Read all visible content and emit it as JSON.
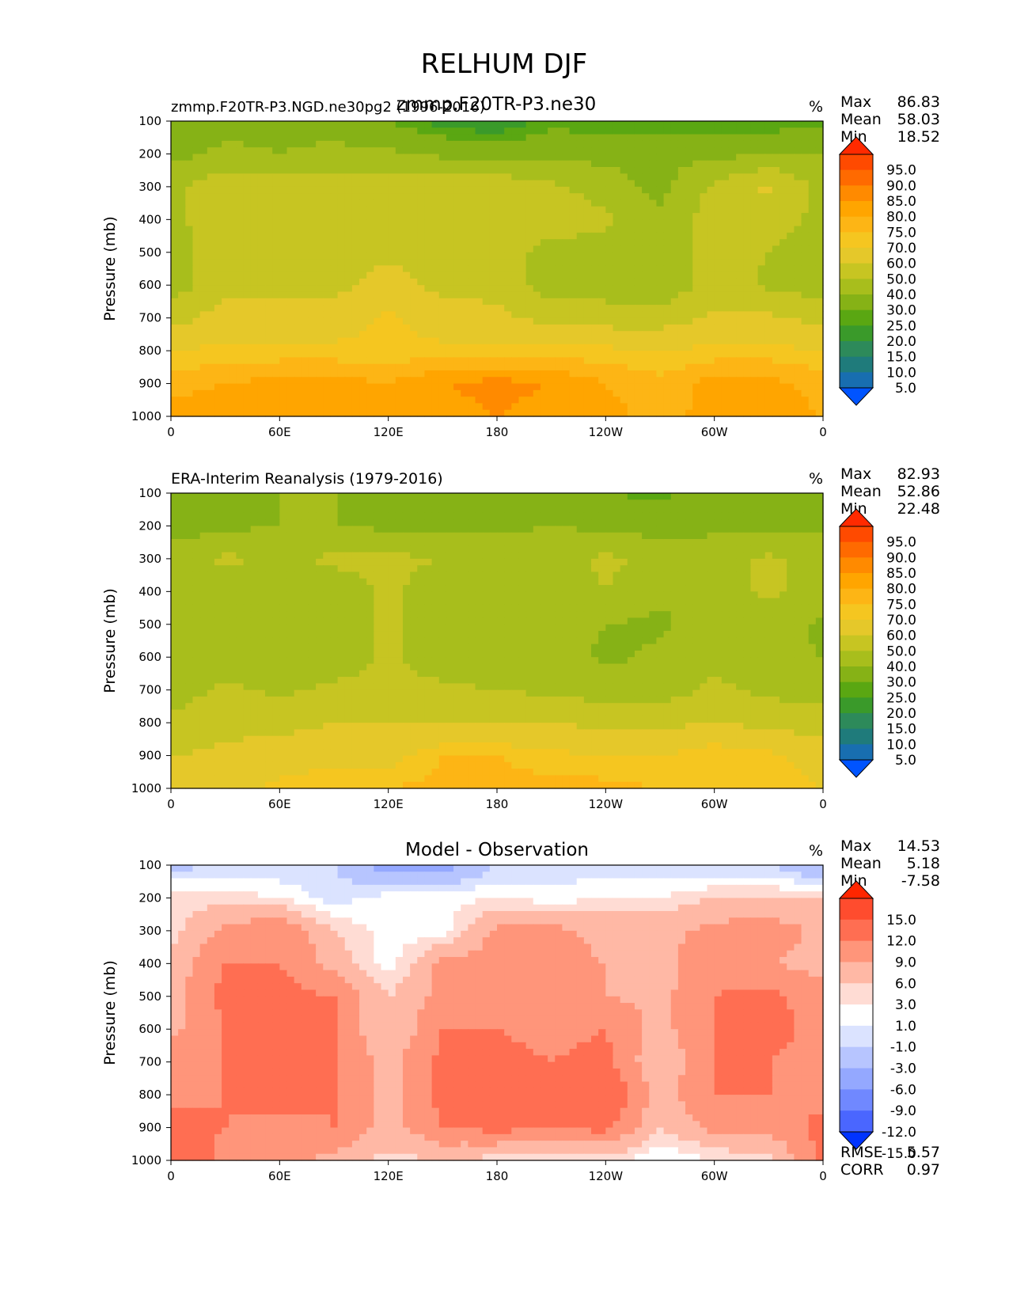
{
  "figure_title": "RELHUM DJF",
  "panels": [
    {
      "left_title": "zmmp.F20TR-P3.NGD.ne30pg2 (1996-2016)",
      "center_title": "zmmp.F20TR-P3.ne30",
      "units": "%",
      "stats": [
        {
          "label": "Max",
          "value": "86.83"
        },
        {
          "label": "Mean",
          "value": "58.03"
        },
        {
          "label": "Min",
          "value": "18.52"
        }
      ],
      "colorbar": {
        "labels": [
          "95.0",
          "90.0",
          "85.0",
          "80.0",
          "75.0",
          "70.0",
          "60.0",
          "50.0",
          "40.0",
          "30.0",
          "25.0",
          "20.0",
          "15.0",
          "10.0",
          "5.0"
        ],
        "colors": [
          "#ff2a00",
          "#ff4a00",
          "#ff6a00",
          "#ff8a00",
          "#ffa500",
          "#fdb515",
          "#f5c620",
          "#e5c82a",
          "#c7c522",
          "#a8be1c",
          "#86b216",
          "#5aa712",
          "#3a9a2a",
          "#2d8a5a",
          "#1f7b7b",
          "#186eb0",
          "#0054ff"
        ]
      },
      "field": "model"
    },
    {
      "left_title": "ERA-Interim Reanalysis (1979-2016)",
      "center_title": "",
      "units": "%",
      "stats": [
        {
          "label": "Max",
          "value": "82.93"
        },
        {
          "label": "Mean",
          "value": "52.86"
        },
        {
          "label": "Min",
          "value": "22.48"
        }
      ],
      "colorbar": {
        "labels": [
          "95.0",
          "90.0",
          "85.0",
          "80.0",
          "75.0",
          "70.0",
          "60.0",
          "50.0",
          "40.0",
          "30.0",
          "25.0",
          "20.0",
          "15.0",
          "10.0",
          "5.0"
        ],
        "colors": [
          "#ff2a00",
          "#ff4a00",
          "#ff6a00",
          "#ff8a00",
          "#ffa500",
          "#fdb515",
          "#f5c620",
          "#e5c82a",
          "#c7c522",
          "#a8be1c",
          "#86b216",
          "#5aa712",
          "#3a9a2a",
          "#2d8a5a",
          "#1f7b7b",
          "#186eb0",
          "#0054ff"
        ]
      },
      "field": "obs"
    },
    {
      "left_title": "",
      "center_title": "Model - Observation",
      "units": "%",
      "stats": [
        {
          "label": "Max",
          "value": "14.53"
        },
        {
          "label": "Mean",
          "value": "5.18"
        },
        {
          "label": "Min",
          "value": "-7.58"
        }
      ],
      "colorbar": {
        "labels": [
          "15.0",
          "12.0",
          "9.0",
          "6.0",
          "3.0",
          "1.0",
          "-1.0",
          "-3.0",
          "-6.0",
          "-9.0",
          "-12.0",
          "-15.0"
        ],
        "colors": [
          "#ff2600",
          "#ff4c2e",
          "#ff6e52",
          "#ff957a",
          "#ffb8a5",
          "#ffdcd4",
          "#ffffff",
          "#dbe3ff",
          "#b7c5ff",
          "#94a8ff",
          "#7088ff",
          "#4a66ff",
          "#0033ff"
        ]
      },
      "metrics": [
        {
          "label": "RMSE",
          "value": "5.57"
        },
        {
          "label": "CORR",
          "value": "0.97"
        }
      ],
      "field": "diff"
    }
  ],
  "chart_data": {
    "type": "heatmap",
    "title": "RELHUM DJF",
    "ylabel": "Pressure (mb)",
    "xlabel": "",
    "x_ticks": [
      "0",
      "60E",
      "120E",
      "180",
      "120W",
      "60W",
      "0"
    ],
    "y_ticks": [
      "100",
      "200",
      "300",
      "400",
      "500",
      "600",
      "700",
      "800",
      "900",
      "1000"
    ],
    "x_range": [
      0,
      360
    ],
    "y_range": [
      100,
      1000
    ],
    "y_inverted": true,
    "x": [
      0,
      30,
      60,
      90,
      120,
      150,
      180,
      210,
      240,
      270,
      300,
      330,
      360
    ],
    "y": [
      100,
      200,
      300,
      400,
      500,
      600,
      700,
      800,
      900,
      1000
    ],
    "series": [
      {
        "name": "Model",
        "z": [
          [
            33,
            37,
            37,
            37,
            30,
            22,
            18,
            28,
            25,
            25,
            25,
            25,
            28
          ],
          [
            37,
            42,
            40,
            42,
            42,
            38,
            37,
            37,
            37,
            37,
            37,
            40,
            40
          ],
          [
            47,
            57,
            57,
            57,
            57,
            57,
            57,
            52,
            45,
            37,
            52,
            62,
            47
          ],
          [
            47,
            57,
            57,
            55,
            57,
            57,
            57,
            57,
            52,
            42,
            55,
            55,
            47
          ],
          [
            45,
            57,
            57,
            57,
            57,
            57,
            57,
            45,
            45,
            42,
            55,
            50,
            42
          ],
          [
            45,
            57,
            57,
            57,
            65,
            57,
            57,
            45,
            45,
            42,
            55,
            48,
            45
          ],
          [
            55,
            65,
            65,
            65,
            72,
            65,
            62,
            57,
            55,
            55,
            62,
            62,
            57
          ],
          [
            70,
            72,
            72,
            72,
            72,
            72,
            72,
            72,
            72,
            70,
            72,
            72,
            70
          ],
          [
            78,
            80,
            82,
            82,
            80,
            85,
            87,
            85,
            80,
            77,
            82,
            82,
            78
          ],
          [
            82,
            85,
            85,
            82,
            80,
            82,
            85,
            82,
            82,
            78,
            82,
            82,
            80
          ]
        ]
      },
      {
        "name": "ERA-Interim",
        "z": [
          [
            35,
            38,
            40,
            40,
            38,
            38,
            38,
            35,
            30,
            28,
            35,
            30,
            32
          ],
          [
            35,
            38,
            40,
            40,
            38,
            38,
            38,
            40,
            38,
            35,
            38,
            38,
            38
          ],
          [
            45,
            52,
            47,
            52,
            52,
            50,
            45,
            45,
            52,
            47,
            45,
            52,
            45
          ],
          [
            45,
            45,
            45,
            45,
            52,
            45,
            42,
            45,
            50,
            42,
            45,
            52,
            45
          ],
          [
            42,
            45,
            45,
            45,
            52,
            45,
            42,
            45,
            40,
            38,
            45,
            45,
            38
          ],
          [
            42,
            45,
            45,
            45,
            52,
            45,
            42,
            45,
            38,
            42,
            48,
            42,
            40
          ],
          [
            45,
            52,
            48,
            52,
            52,
            52,
            50,
            48,
            45,
            45,
            52,
            48,
            45
          ],
          [
            52,
            57,
            57,
            60,
            60,
            60,
            60,
            60,
            57,
            57,
            60,
            57,
            55
          ],
          [
            60,
            62,
            65,
            67,
            67,
            75,
            75,
            72,
            70,
            70,
            75,
            72,
            65
          ],
          [
            65,
            67,
            72,
            75,
            75,
            77,
            77,
            77,
            77,
            75,
            75,
            75,
            70
          ]
        ]
      },
      {
        "name": "Model - Observation",
        "z": [
          [
            -4,
            -3,
            -3,
            -3,
            -8,
            -8,
            -3,
            -3,
            -2,
            -3,
            -3,
            -3,
            -7
          ],
          [
            2,
            2,
            1,
            -2,
            0,
            0,
            1,
            0,
            1,
            1,
            3,
            3,
            3
          ],
          [
            2,
            7,
            9,
            3,
            0,
            0,
            7,
            7,
            5,
            5,
            7,
            8,
            5
          ],
          [
            4,
            9,
            9,
            5,
            0,
            7,
            7,
            7,
            6,
            5,
            8,
            6,
            5
          ],
          [
            5,
            10,
            10,
            9,
            3,
            7,
            8,
            7,
            6,
            5,
            9,
            10,
            7
          ],
          [
            5,
            9,
            9,
            9,
            3,
            9,
            9,
            8,
            9,
            5,
            9,
            10,
            8
          ],
          [
            8,
            9,
            9,
            9,
            5,
            10,
            10,
            9,
            10,
            3,
            9,
            9,
            8
          ],
          [
            8,
            9,
            10,
            9,
            5,
            10,
            12,
            10,
            12,
            5,
            9,
            9,
            8
          ],
          [
            10,
            9,
            8,
            9,
            5,
            9,
            10,
            9,
            10,
            3,
            7,
            7,
            10
          ],
          [
            12,
            8,
            7,
            5,
            2,
            3,
            2,
            2,
            2,
            -1,
            1,
            2,
            10
          ]
        ]
      }
    ]
  }
}
